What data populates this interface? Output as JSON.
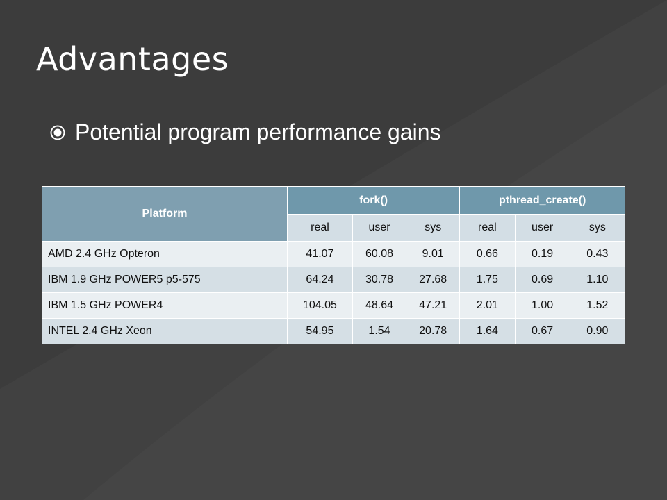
{
  "slide": {
    "title": "Advantages",
    "bullet": "Potential program performance gains"
  },
  "table": {
    "platform_header": "Platform",
    "fork_header": "fork()",
    "pthread_header": "pthread_create()",
    "subheaders": [
      "real",
      "user",
      "sys",
      "real",
      "user",
      "sys"
    ],
    "rows": [
      {
        "platform": "AMD 2.4 GHz Opteron",
        "values": [
          "41.07",
          "60.08",
          "9.01",
          "0.66",
          "0.19",
          "0.43"
        ]
      },
      {
        "platform": "IBM 1.9 GHz POWER5 p5-575",
        "values": [
          "64.24",
          "30.78",
          "27.68",
          "1.75",
          "0.69",
          "1.10"
        ]
      },
      {
        "platform": "IBM 1.5 GHz POWER4",
        "values": [
          "104.05",
          "48.64",
          "47.21",
          "2.01",
          "1.00",
          "1.52"
        ]
      },
      {
        "platform": "INTEL 2.4 GHz Xeon",
        "values": [
          "54.95",
          "1.54",
          "20.78",
          "1.64",
          "0.67",
          "0.90"
        ]
      }
    ]
  },
  "colors": {
    "background": "#3c3c3c",
    "header": "#6f98ab",
    "row_light": "#eaeff2",
    "row_dark": "#d5dfe5"
  },
  "icons": {
    "bullet": "circled-bullet-icon"
  }
}
